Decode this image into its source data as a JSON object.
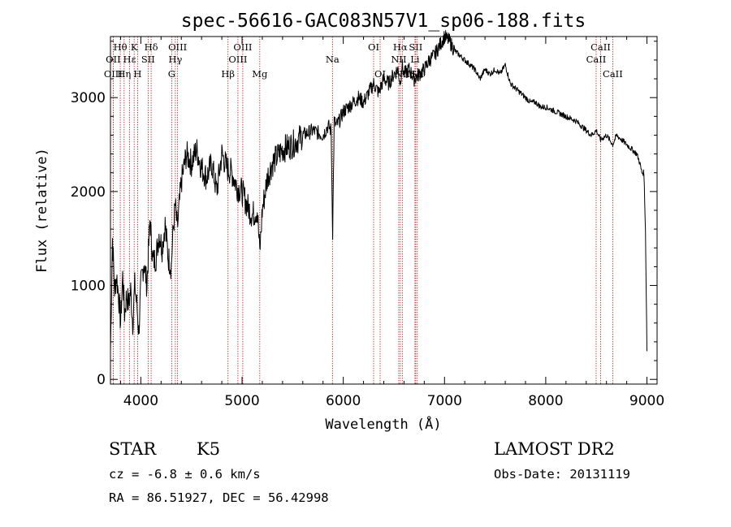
{
  "chart_data": {
    "type": "line",
    "title": "spec-56616-GAC083N57V1_sp06-188.fits",
    "xlabel": "Wavelength (Å)",
    "ylabel": "Flux (relative)",
    "xlim": [
      3700,
      9100
    ],
    "ylim": [
      -50,
      3650
    ],
    "xticks": [
      4000,
      5000,
      6000,
      7000,
      8000,
      9000
    ],
    "yticks": [
      0,
      1000,
      2000,
      3000
    ],
    "grid": false,
    "series": [
      {
        "x": [
          3700,
          3720,
          3740,
          3760,
          3780,
          3800,
          3820,
          3840,
          3860,
          3880,
          3900,
          3920,
          3940,
          3960,
          3980,
          4000,
          4030,
          4060,
          4090,
          4120,
          4150,
          4180,
          4210,
          4240,
          4270,
          4300,
          4320,
          4340,
          4360,
          4400,
          4450,
          4500,
          4550,
          4600,
          4650,
          4700,
          4750,
          4800,
          4850,
          4900,
          4950,
          5000,
          5050,
          5100,
          5150,
          5175,
          5200,
          5250,
          5300,
          5400,
          5500,
          5600,
          5700,
          5800,
          5850,
          5880,
          5895,
          5910,
          5930,
          5960,
          6000,
          6050,
          6100,
          6150,
          6200,
          6250,
          6300,
          6350,
          6400,
          6450,
          6500,
          6540,
          6563,
          6580,
          6600,
          6650,
          6700,
          6750,
          6800,
          6850,
          6900,
          6950,
          7000,
          7050,
          7100,
          7150,
          7200,
          7250,
          7300,
          7350,
          7400,
          7450,
          7500,
          7550,
          7600,
          7650,
          7700,
          7750,
          7800,
          7850,
          7900,
          7950,
          8000,
          8100,
          8200,
          8300,
          8400,
          8450,
          8500,
          8542,
          8600,
          8662,
          8700,
          8750,
          8800,
          8850,
          8900,
          8930,
          8950,
          8970,
          8985,
          9000
        ],
        "y": [
          300,
          1500,
          950,
          1100,
          900,
          600,
          1100,
          700,
          900,
          800,
          950,
          600,
          1000,
          800,
          500,
          1000,
          1250,
          1000,
          1700,
          1250,
          1300,
          1550,
          1400,
          1650,
          1300,
          1200,
          1600,
          1850,
          1600,
          2100,
          2400,
          2300,
          2450,
          2250,
          2150,
          2300,
          2000,
          2400,
          2250,
          2200,
          2050,
          2000,
          1850,
          1750,
          1800,
          1350,
          1800,
          2150,
          2300,
          2450,
          2500,
          2600,
          2650,
          2600,
          2700,
          2650,
          1550,
          2750,
          2700,
          2750,
          2850,
          2900,
          2950,
          3000,
          2950,
          3050,
          3150,
          3050,
          3200,
          3150,
          3250,
          3300,
          3150,
          3350,
          3250,
          3300,
          3200,
          3250,
          3300,
          3400,
          3450,
          3550,
          3650,
          3600,
          3500,
          3450,
          3400,
          3350,
          3300,
          3200,
          3300,
          3250,
          3300,
          3250,
          3350,
          3150,
          3100,
          3050,
          3000,
          2950,
          2950,
          2900,
          2900,
          2850,
          2800,
          2750,
          2650,
          2600,
          2650,
          2550,
          2600,
          2500,
          2600,
          2550,
          2500,
          2450,
          2400,
          2300,
          2200,
          2200,
          1600,
          300
        ]
      }
    ],
    "line_markers": [
      {
        "label": "Hθ",
        "wave": 3797,
        "row": 0
      },
      {
        "label": "OII",
        "wave": 3727,
        "row": 1
      },
      {
        "label": "OIII",
        "wave": 3727,
        "row": 2
      },
      {
        "label": "Hε",
        "wave": 3889,
        "row": 1
      },
      {
        "label": "K",
        "wave": 3934,
        "row": 0
      },
      {
        "label": "Hη",
        "wave": 3835,
        "row": 2
      },
      {
        "label": "H",
        "wave": 3968,
        "row": 2
      },
      {
        "label": "SII",
        "wave": 4072,
        "row": 1
      },
      {
        "label": "Hδ",
        "wave": 4102,
        "row": 0
      },
      {
        "label": "OIII",
        "wave": 4363,
        "row": 0
      },
      {
        "label": "Hγ",
        "wave": 4341,
        "row": 1
      },
      {
        "label": "G",
        "wave": 4305,
        "row": 2
      },
      {
        "label": "OIII",
        "wave": 5007,
        "row": 0
      },
      {
        "label": "OIII",
        "wave": 4959,
        "row": 1
      },
      {
        "label": "Hβ",
        "wave": 4861,
        "row": 2
      },
      {
        "label": "Mg",
        "wave": 5175,
        "row": 2
      },
      {
        "label": "Na",
        "wave": 5893,
        "row": 1
      },
      {
        "label": "OI",
        "wave": 6300,
        "row": 0
      },
      {
        "label": "OI",
        "wave": 6364,
        "row": 2
      },
      {
        "label": "Hα",
        "wave": 6563,
        "row": 0
      },
      {
        "label": "SII",
        "wave": 6716,
        "row": 0
      },
      {
        "label": "NII",
        "wave": 6548,
        "row": 1
      },
      {
        "label": "Li",
        "wave": 6708,
        "row": 1
      },
      {
        "label": "NII",
        "wave": 6583,
        "row": 2
      },
      {
        "label": "SII",
        "wave": 6731,
        "row": 2
      },
      {
        "label": "CaII",
        "wave": 8542,
        "row": 0
      },
      {
        "label": "CaII",
        "wave": 8498,
        "row": 1
      },
      {
        "label": "CaII",
        "wave": 8662,
        "row": 2
      }
    ]
  },
  "info": {
    "object_class": "STAR",
    "subclass": "K5",
    "survey": "LAMOST DR2",
    "cz": "cz = -6.8 ± 0.6 km/s",
    "obs_date": "Obs-Date: 20131119",
    "coords": "RA =  86.51927, DEC =  56.42998"
  },
  "colors": {
    "line_marker": "#b22222",
    "spectrum": "#000000"
  }
}
